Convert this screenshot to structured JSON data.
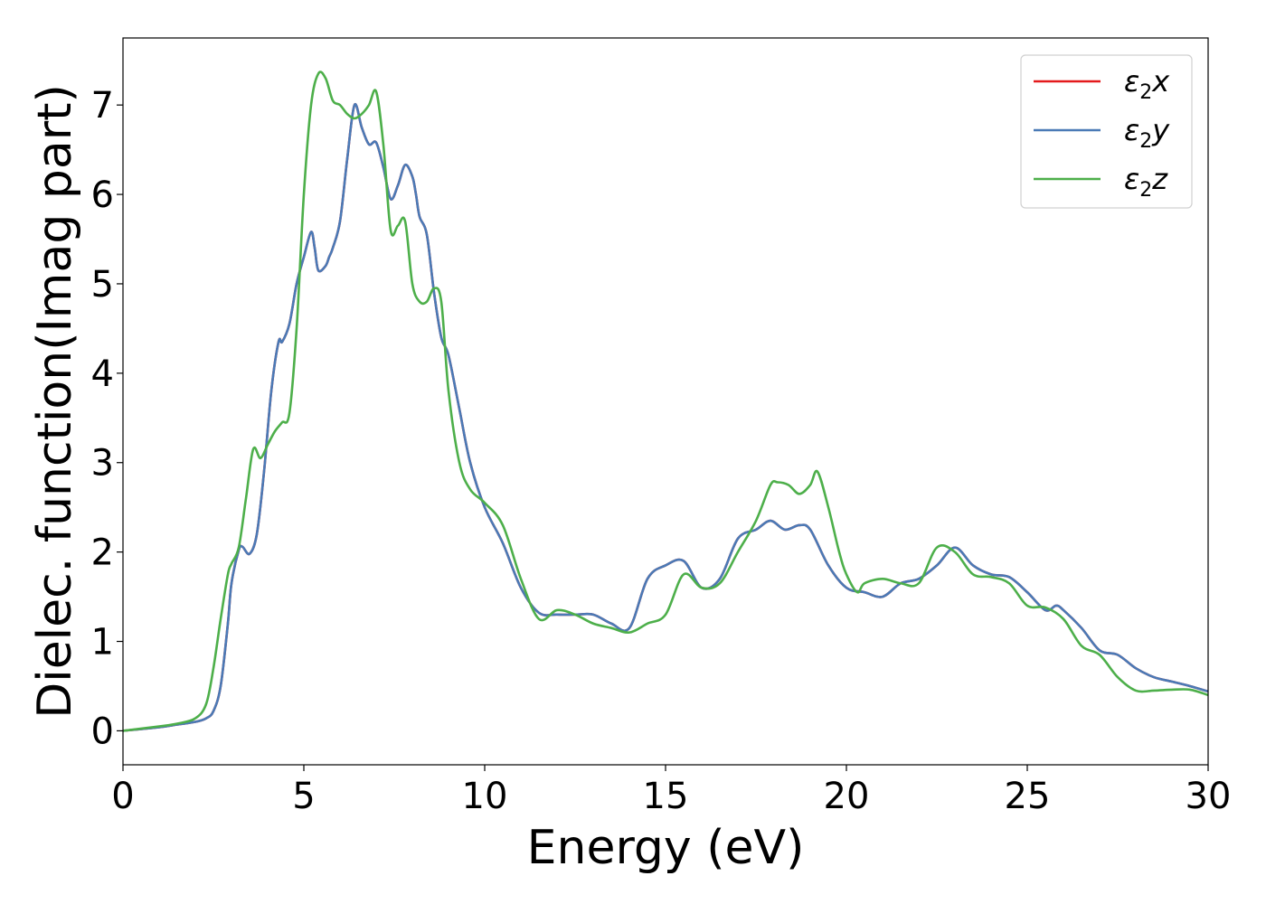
{
  "chart_data": {
    "type": "line",
    "xlabel": "Energy (eV)",
    "ylabel": "Dielec. function(Imag part)",
    "xlim": [
      0,
      30
    ],
    "ylim": [
      -0.38,
      7.75
    ],
    "xticks": [
      0,
      5,
      10,
      15,
      20,
      25,
      30
    ],
    "yticks": [
      0,
      1,
      2,
      3,
      4,
      5,
      6,
      7
    ],
    "grid": false,
    "legend_position": "top-right",
    "series": [
      {
        "name": "ε2x",
        "legend_main": "ε",
        "legend_sub": "2",
        "legend_suffix": "x",
        "color": "#e41a1c",
        "x": [
          0,
          1,
          1.5,
          2,
          2.3,
          2.5,
          2.7,
          2.9,
          3.0,
          3.2,
          3.3,
          3.5,
          3.7,
          3.9,
          4.1,
          4.3,
          4.4,
          4.6,
          4.8,
          5.0,
          5.2,
          5.3,
          5.4,
          5.6,
          5.7,
          5.8,
          6.0,
          6.2,
          6.4,
          6.6,
          6.8,
          7.0,
          7.2,
          7.4,
          7.6,
          7.8,
          8.0,
          8.1,
          8.2,
          8.4,
          8.6,
          8.8,
          9.0,
          9.3,
          9.6,
          10.0,
          10.5,
          11.0,
          11.5,
          12.0,
          12.5,
          13.0,
          13.5,
          14.0,
          14.5,
          15.0,
          15.5,
          16.0,
          16.5,
          17.0,
          17.5,
          17.9,
          18.3,
          18.7,
          19.0,
          19.5,
          20.0,
          20.5,
          21.0,
          21.5,
          22.0,
          22.5,
          23.0,
          23.5,
          24.0,
          24.5,
          25.0,
          25.5,
          25.8,
          26.0,
          26.5,
          27.0,
          27.5,
          28.0,
          28.5,
          29.0,
          29.5,
          30.0
        ],
        "y": [
          0.0,
          0.04,
          0.07,
          0.1,
          0.14,
          0.22,
          0.5,
          1.2,
          1.65,
          2.02,
          2.06,
          1.98,
          2.2,
          2.9,
          3.8,
          4.35,
          4.35,
          4.55,
          5.0,
          5.3,
          5.58,
          5.4,
          5.15,
          5.2,
          5.3,
          5.4,
          5.7,
          6.4,
          7.0,
          6.75,
          6.56,
          6.58,
          6.3,
          5.95,
          6.1,
          6.33,
          6.2,
          6.0,
          5.75,
          5.55,
          4.9,
          4.4,
          4.2,
          3.6,
          3.0,
          2.5,
          2.1,
          1.6,
          1.32,
          1.3,
          1.3,
          1.3,
          1.2,
          1.15,
          1.7,
          1.85,
          1.9,
          1.6,
          1.7,
          2.15,
          2.25,
          2.35,
          2.25,
          2.3,
          2.25,
          1.85,
          1.6,
          1.55,
          1.5,
          1.65,
          1.7,
          1.85,
          2.05,
          1.85,
          1.75,
          1.72,
          1.55,
          1.35,
          1.4,
          1.35,
          1.15,
          0.9,
          0.85,
          0.7,
          0.6,
          0.55,
          0.5,
          0.44
        ]
      },
      {
        "name": "ε2y",
        "legend_main": "ε",
        "legend_sub": "2",
        "legend_suffix": "y",
        "color": "#4a7ab6",
        "x": [
          0,
          1,
          1.5,
          2,
          2.3,
          2.5,
          2.7,
          2.9,
          3.0,
          3.2,
          3.3,
          3.5,
          3.7,
          3.9,
          4.1,
          4.3,
          4.4,
          4.6,
          4.8,
          5.0,
          5.2,
          5.3,
          5.4,
          5.6,
          5.7,
          5.8,
          6.0,
          6.2,
          6.4,
          6.6,
          6.8,
          7.0,
          7.2,
          7.4,
          7.6,
          7.8,
          8.0,
          8.1,
          8.2,
          8.4,
          8.6,
          8.8,
          9.0,
          9.3,
          9.6,
          10.0,
          10.5,
          11.0,
          11.5,
          12.0,
          12.5,
          13.0,
          13.5,
          14.0,
          14.5,
          15.0,
          15.5,
          16.0,
          16.5,
          17.0,
          17.5,
          17.9,
          18.3,
          18.7,
          19.0,
          19.5,
          20.0,
          20.5,
          21.0,
          21.5,
          22.0,
          22.5,
          23.0,
          23.5,
          24.0,
          24.5,
          25.0,
          25.5,
          25.8,
          26.0,
          26.5,
          27.0,
          27.5,
          28.0,
          28.5,
          29.0,
          29.5,
          30.0
        ],
        "y": [
          0.0,
          0.04,
          0.07,
          0.1,
          0.14,
          0.22,
          0.5,
          1.2,
          1.65,
          2.02,
          2.06,
          1.98,
          2.2,
          2.9,
          3.8,
          4.35,
          4.35,
          4.55,
          5.0,
          5.3,
          5.58,
          5.4,
          5.15,
          5.2,
          5.3,
          5.4,
          5.7,
          6.4,
          7.0,
          6.75,
          6.56,
          6.58,
          6.3,
          5.95,
          6.1,
          6.33,
          6.2,
          6.0,
          5.75,
          5.55,
          4.9,
          4.4,
          4.2,
          3.6,
          3.0,
          2.5,
          2.1,
          1.6,
          1.32,
          1.3,
          1.3,
          1.3,
          1.2,
          1.15,
          1.7,
          1.85,
          1.9,
          1.6,
          1.7,
          2.15,
          2.25,
          2.35,
          2.25,
          2.3,
          2.25,
          1.85,
          1.6,
          1.55,
          1.5,
          1.65,
          1.7,
          1.85,
          2.05,
          1.85,
          1.75,
          1.72,
          1.55,
          1.35,
          1.4,
          1.35,
          1.15,
          0.9,
          0.85,
          0.7,
          0.6,
          0.55,
          0.5,
          0.44
        ]
      },
      {
        "name": "ε2z",
        "legend_main": "ε",
        "legend_sub": "2",
        "legend_suffix": "z",
        "color": "#4daf4a",
        "x": [
          0,
          1,
          1.5,
          2,
          2.3,
          2.5,
          2.7,
          2.9,
          3.0,
          3.2,
          3.4,
          3.6,
          3.8,
          4.0,
          4.2,
          4.4,
          4.6,
          4.8,
          5.0,
          5.2,
          5.4,
          5.6,
          5.8,
          6.0,
          6.2,
          6.4,
          6.6,
          6.8,
          7.0,
          7.2,
          7.4,
          7.6,
          7.8,
          8.0,
          8.2,
          8.4,
          8.6,
          8.8,
          9.0,
          9.3,
          9.6,
          10.0,
          10.5,
          11.0,
          11.5,
          12.0,
          12.5,
          13.0,
          13.5,
          14.0,
          14.5,
          15.0,
          15.5,
          16.0,
          16.5,
          17.0,
          17.5,
          17.9,
          18.1,
          18.4,
          18.7,
          19.0,
          19.2,
          19.5,
          19.8,
          20.0,
          20.3,
          20.5,
          21.0,
          21.5,
          22.0,
          22.5,
          23.0,
          23.5,
          24.0,
          24.5,
          25.0,
          25.5,
          26.0,
          26.5,
          27.0,
          27.5,
          28.0,
          28.5,
          29.0,
          29.5,
          30.0
        ],
        "y": [
          0.0,
          0.05,
          0.08,
          0.14,
          0.3,
          0.7,
          1.25,
          1.75,
          1.87,
          2.05,
          2.6,
          3.15,
          3.05,
          3.2,
          3.35,
          3.45,
          3.55,
          4.5,
          6.0,
          7.0,
          7.35,
          7.3,
          7.05,
          7.0,
          6.9,
          6.85,
          6.9,
          7.0,
          7.15,
          6.55,
          5.6,
          5.65,
          5.7,
          5.0,
          4.8,
          4.8,
          4.95,
          4.8,
          3.8,
          3.0,
          2.7,
          2.55,
          2.3,
          1.7,
          1.25,
          1.35,
          1.3,
          1.2,
          1.15,
          1.1,
          1.2,
          1.3,
          1.75,
          1.6,
          1.65,
          2.0,
          2.35,
          2.75,
          2.78,
          2.75,
          2.65,
          2.75,
          2.9,
          2.5,
          2.0,
          1.75,
          1.55,
          1.65,
          1.7,
          1.65,
          1.65,
          2.05,
          2.0,
          1.75,
          1.72,
          1.65,
          1.4,
          1.38,
          1.25,
          0.95,
          0.85,
          0.6,
          0.45,
          0.45,
          0.46,
          0.46,
          0.4
        ]
      }
    ]
  }
}
